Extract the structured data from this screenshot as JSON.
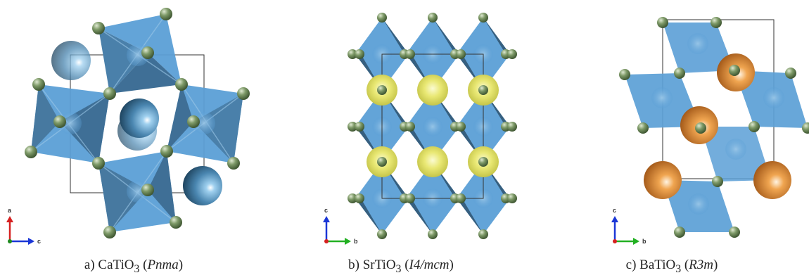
{
  "panels": [
    {
      "label_prefix": "a)",
      "formula_base": "CaTiO",
      "formula_sub": "3",
      "space_group": "Pnma",
      "axis_vertical": "a",
      "axis_horizontal": "c",
      "vertical_axis_color": "#d62020",
      "horizontal_axis_color": "#1a36d6"
    },
    {
      "label_prefix": "b)",
      "formula_base": "SrTiO",
      "formula_sub": "3",
      "space_group": "I4/mcm",
      "axis_vertical": "c",
      "axis_horizontal": "b",
      "vertical_axis_color": "#1a36d6",
      "horizontal_axis_color": "#22b022"
    },
    {
      "label_prefix": "c)",
      "formula_base": "BaTiO",
      "formula_sub": "3",
      "space_group": "R3m",
      "axis_vertical": "c",
      "axis_horizontal": "b",
      "vertical_axis_color": "#1a36d6",
      "horizontal_axis_color": "#22b022"
    }
  ],
  "colors": {
    "octahedron": "#5b9fd6",
    "octahedron_dark": "#3f6f96",
    "oxygen": "#6b8a5a",
    "ca_atom": "#4a86b0",
    "sr_atom": "#e4e46a",
    "ba_atom": "#dc8a30"
  }
}
